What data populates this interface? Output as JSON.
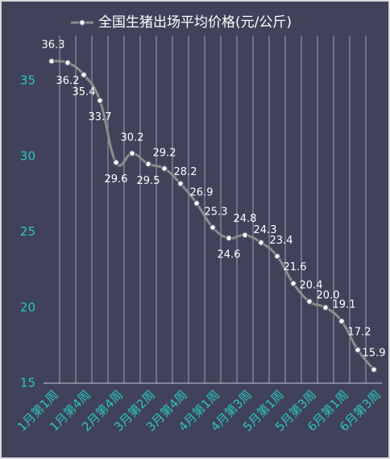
{
  "chart_data": {
    "type": "line",
    "categories": [
      "1月第1周",
      null,
      "1月第4周",
      null,
      "2月第4周",
      null,
      "3月第2周",
      null,
      "3月第4周",
      null,
      "4月第1周",
      null,
      "4月第3周",
      null,
      "5月第1周",
      null,
      "5月第3周",
      null,
      "6月第1周",
      null,
      "6月第3周"
    ],
    "series": [
      {
        "name": "全国生猪出场平均价格(元/公斤)",
        "color": "#8c8c8c",
        "values": [
          36.3,
          36.2,
          35.4,
          33.7,
          29.6,
          30.2,
          29.5,
          29.2,
          28.2,
          26.9,
          25.3,
          24.6,
          24.8,
          24.3,
          23.4,
          21.6,
          20.4,
          20.0,
          19.1,
          17.2,
          15.9
        ],
        "value_labels": [
          "36.3",
          "36.2",
          "35.4",
          "33.7",
          "29.6",
          "30.2",
          "29.5",
          "29.2",
          "28.2",
          "26.9",
          "25.3",
          "24.6",
          "24.8",
          "24.3",
          "23.4",
          "21.6",
          "20.4",
          "20.0",
          "19.1",
          "17.2",
          "15.9"
        ]
      }
    ],
    "ylim": [
      15,
      38
    ],
    "yticks": [
      15,
      20,
      25,
      30,
      35
    ],
    "grid": true,
    "legend": "top"
  }
}
